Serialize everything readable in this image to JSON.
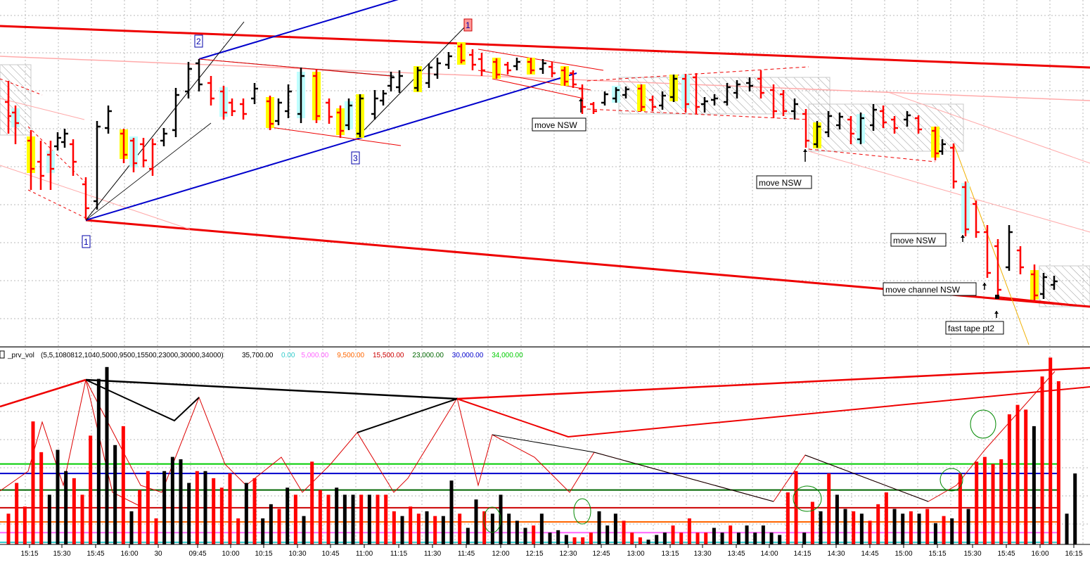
{
  "chart_data": {
    "type": "bar",
    "panels": [
      "price",
      "volume"
    ],
    "price_panel": {
      "bar_colors": {
        "up": "#000000",
        "down": "#ff0000"
      },
      "highlight_colors": {
        "yellow": "#ffff00",
        "cyan": "#bfffff"
      },
      "trendline_colors": {
        "channel": "#ee0000",
        "blue": "#0000cc",
        "thin": "#000000",
        "pink": "#ffaaaa",
        "orange": "#f0b000"
      },
      "swing_labels": [
        {
          "id": "swing-1-low",
          "text": "1",
          "style": "blue"
        },
        {
          "id": "swing-2",
          "text": "2",
          "style": "blue"
        },
        {
          "id": "swing-3",
          "text": "3",
          "style": "blue"
        },
        {
          "id": "swing-1-high",
          "text": "1",
          "style": "pink"
        }
      ],
      "annotations": [
        {
          "id": "move-nsw-1",
          "text": "move NSW"
        },
        {
          "id": "move-nsw-2",
          "text": "move NSW"
        },
        {
          "id": "move-nsw-3",
          "text": "move NSW"
        },
        {
          "id": "move-channel-nsw",
          "text": "move channel NSW"
        },
        {
          "id": "fast-tape-pt2",
          "text": "fast tape pt2"
        }
      ]
    },
    "volume_panel": {
      "indicator_name": "_prv_vol",
      "indicator_params": "(5,5,1080812,1040,5000,9500,15500,23000,30000,34000)",
      "current_value": "35,700.00",
      "levels": [
        {
          "label": "0.00",
          "value": 0,
          "color": "#33cccc"
        },
        {
          "label": "5,000.00",
          "value": 5000,
          "color": "#ff66ff"
        },
        {
          "label": "9,500.00",
          "value": 9500,
          "color": "#ff6600"
        },
        {
          "label": "15,500.00",
          "value": 15500,
          "color": "#cc0000"
        },
        {
          "label": "23,000.00",
          "value": 23000,
          "color": "#006600"
        },
        {
          "label": "30,000.00",
          "value": 30000,
          "color": "#0000cc"
        },
        {
          "label": "34,000.00",
          "value": 34000,
          "color": "#00cc00"
        }
      ],
      "ylim": [
        0,
        80000
      ],
      "volumes": [
        {
          "v": 13000,
          "c": "r"
        },
        {
          "v": 26000,
          "c": "r"
        },
        {
          "v": 16000,
          "c": "r"
        },
        {
          "v": 52000,
          "c": "r"
        },
        {
          "v": 39000,
          "c": "r"
        },
        {
          "v": 21000,
          "c": "b"
        },
        {
          "v": 40000,
          "c": "b"
        },
        {
          "v": 31000,
          "c": "b"
        },
        {
          "v": 28000,
          "c": "r"
        },
        {
          "v": 21000,
          "c": "r"
        },
        {
          "v": 46000,
          "c": "r"
        },
        {
          "v": 70000,
          "c": "b"
        },
        {
          "v": 75000,
          "c": "b"
        },
        {
          "v": 42000,
          "c": "b"
        },
        {
          "v": 50000,
          "c": "r"
        },
        {
          "v": 14000,
          "c": "b"
        },
        {
          "v": 23000,
          "c": "r"
        },
        {
          "v": 31000,
          "c": "r"
        },
        {
          "v": 11000,
          "c": "r"
        },
        {
          "v": 31000,
          "c": "b"
        },
        {
          "v": 37000,
          "c": "b"
        },
        {
          "v": 36000,
          "c": "b"
        },
        {
          "v": 26000,
          "c": "b"
        },
        {
          "v": 31000,
          "c": "r"
        },
        {
          "v": 31000,
          "c": "b"
        },
        {
          "v": 28000,
          "c": "r"
        },
        {
          "v": 24000,
          "c": "r"
        },
        {
          "v": 30000,
          "c": "r"
        },
        {
          "v": 11000,
          "c": "r"
        },
        {
          "v": 26000,
          "c": "b"
        },
        {
          "v": 28000,
          "c": "r"
        },
        {
          "v": 11000,
          "c": "b"
        },
        {
          "v": 17000,
          "c": "b"
        },
        {
          "v": 15000,
          "c": "r"
        },
        {
          "v": 24000,
          "c": "b"
        },
        {
          "v": 21000,
          "c": "r"
        },
        {
          "v": 12000,
          "c": "b"
        },
        {
          "v": 35000,
          "c": "r"
        },
        {
          "v": 23000,
          "c": "r"
        },
        {
          "v": 21000,
          "c": "r"
        },
        {
          "v": 24000,
          "c": "b"
        },
        {
          "v": 21000,
          "c": "b"
        },
        {
          "v": 21000,
          "c": "b"
        },
        {
          "v": 21000,
          "c": "r"
        },
        {
          "v": 21000,
          "c": "b"
        },
        {
          "v": 21000,
          "c": "r"
        },
        {
          "v": 21000,
          "c": "r"
        },
        {
          "v": 14000,
          "c": "r"
        },
        {
          "v": 12000,
          "c": "b"
        },
        {
          "v": 16000,
          "c": "r"
        },
        {
          "v": 13000,
          "c": "r"
        },
        {
          "v": 14000,
          "c": "b"
        },
        {
          "v": 12000,
          "c": "r"
        },
        {
          "v": 12000,
          "c": "b"
        },
        {
          "v": 27000,
          "c": "b"
        },
        {
          "v": 13000,
          "c": "r"
        },
        {
          "v": 7000,
          "c": "b"
        },
        {
          "v": 19000,
          "c": "b"
        },
        {
          "v": 14000,
          "c": "r"
        },
        {
          "v": 13000,
          "c": "b"
        },
        {
          "v": 21000,
          "c": "b"
        },
        {
          "v": 13000,
          "c": "b"
        },
        {
          "v": 10000,
          "c": "b"
        },
        {
          "v": 7000,
          "c": "b"
        },
        {
          "v": 8000,
          "c": "r"
        },
        {
          "v": 13000,
          "c": "b"
        },
        {
          "v": 5000,
          "c": "b"
        },
        {
          "v": 6000,
          "c": "b"
        },
        {
          "v": 4000,
          "c": "b"
        },
        {
          "v": 3000,
          "c": "r"
        },
        {
          "v": 3000,
          "c": "r"
        },
        {
          "v": 5000,
          "c": "r"
        },
        {
          "v": 14000,
          "c": "b"
        },
        {
          "v": 8000,
          "c": "b"
        },
        {
          "v": 13000,
          "c": "b"
        },
        {
          "v": 10000,
          "c": "r"
        },
        {
          "v": 5000,
          "c": "r"
        },
        {
          "v": 3000,
          "c": "r"
        },
        {
          "v": 2000,
          "c": "b"
        },
        {
          "v": 4000,
          "c": "b"
        },
        {
          "v": 5000,
          "c": "b"
        },
        {
          "v": 8000,
          "c": "r"
        },
        {
          "v": 5000,
          "c": "r"
        },
        {
          "v": 11000,
          "c": "r"
        },
        {
          "v": 5000,
          "c": "r"
        },
        {
          "v": 5000,
          "c": "r"
        },
        {
          "v": 7000,
          "c": "b"
        },
        {
          "v": 5000,
          "c": "b"
        },
        {
          "v": 8000,
          "c": "r"
        },
        {
          "v": 5000,
          "c": "b"
        },
        {
          "v": 8000,
          "c": "b"
        },
        {
          "v": 5000,
          "c": "b"
        },
        {
          "v": 8000,
          "c": "b"
        },
        {
          "v": 5000,
          "c": "b"
        },
        {
          "v": 4000,
          "c": "b"
        },
        {
          "v": 22000,
          "c": "r"
        },
        {
          "v": 31000,
          "c": "r"
        },
        {
          "v": 5000,
          "c": "b"
        },
        {
          "v": 18000,
          "c": "r"
        },
        {
          "v": 14000,
          "c": "b"
        },
        {
          "v": 30000,
          "c": "r"
        },
        {
          "v": 21000,
          "c": "b"
        },
        {
          "v": 15000,
          "c": "b"
        },
        {
          "v": 14000,
          "c": "r"
        },
        {
          "v": 13000,
          "c": "b"
        },
        {
          "v": 10000,
          "c": "r"
        },
        {
          "v": 17000,
          "c": "r"
        },
        {
          "v": 22000,
          "c": "r"
        },
        {
          "v": 15000,
          "c": "b"
        },
        {
          "v": 13000,
          "c": "b"
        },
        {
          "v": 14000,
          "c": "r"
        },
        {
          "v": 13000,
          "c": "b"
        },
        {
          "v": 15000,
          "c": "r"
        },
        {
          "v": 9000,
          "c": "b"
        },
        {
          "v": 12000,
          "c": "r"
        },
        {
          "v": 11000,
          "c": "b"
        },
        {
          "v": 30000,
          "c": "r"
        },
        {
          "v": 15000,
          "c": "b"
        },
        {
          "v": 35000,
          "c": "r"
        },
        {
          "v": 37000,
          "c": "r"
        },
        {
          "v": 34000,
          "c": "r"
        },
        {
          "v": 36000,
          "c": "r"
        },
        {
          "v": 55000,
          "c": "r"
        },
        {
          "v": 59000,
          "c": "r"
        },
        {
          "v": 57000,
          "c": "r"
        },
        {
          "v": 50000,
          "c": "b"
        },
        {
          "v": 71000,
          "c": "r"
        },
        {
          "v": 79000,
          "c": "r"
        },
        {
          "v": 69000,
          "c": "r"
        },
        {
          "v": 13000,
          "c": "b"
        },
        {
          "v": 30000,
          "c": "b"
        }
      ]
    },
    "x_axis": {
      "tick_labels": [
        "15:15",
        "15:30",
        "15:45",
        "16:00",
        "30",
        "09:45",
        "10:00",
        "10:15",
        "10:30",
        "10:45",
        "11:00",
        "11:15",
        "11:30",
        "11:45",
        "12:00",
        "12:15",
        "12:30",
        "12:45",
        "13:00",
        "13:15",
        "13:30",
        "13:45",
        "14:00",
        "14:15",
        "14:30",
        "14:45",
        "15:00",
        "15:15",
        "15:30",
        "15:45",
        "16:00",
        "16:15"
      ]
    }
  },
  "colors": {
    "grid": "#b8b8b8",
    "background": "#ffffff",
    "volume_red": "#ff0000",
    "volume_black": "#000000",
    "circle": "#008800"
  }
}
